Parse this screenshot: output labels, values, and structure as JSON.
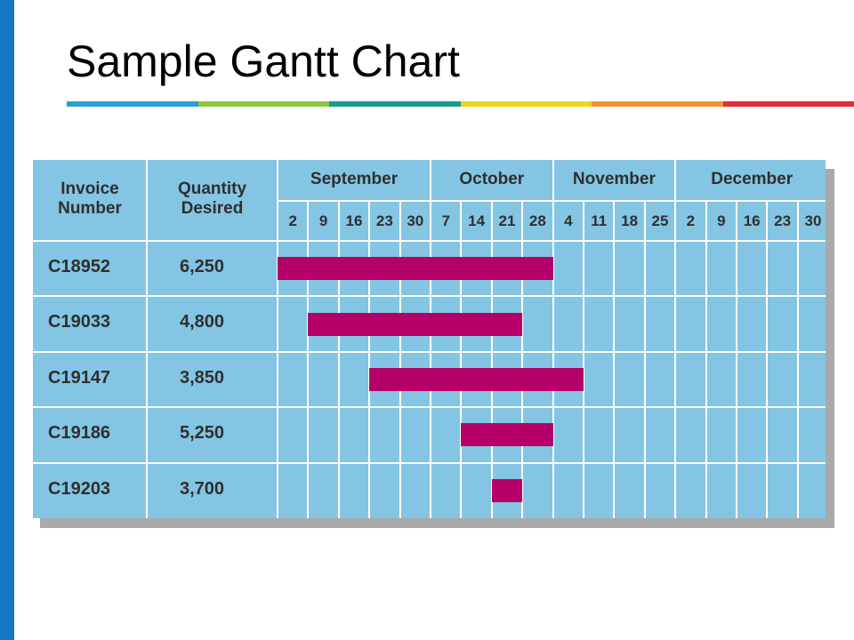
{
  "slide": {
    "title": "Sample Gantt Chart",
    "accent_colors": [
      "#2a9fd8",
      "#8cc63f",
      "#1a9a8c",
      "#f2d31b",
      "#f3922f",
      "#e5293a"
    ],
    "side_bar_color": "#1877c2"
  },
  "chart_data": {
    "type": "gantt",
    "columns": {
      "invoice": "Invoice\nNumber",
      "quantity": "Quantity\nDesired"
    },
    "months": [
      {
        "name": "September",
        "weeks": [
          "2",
          "9",
          "16",
          "23",
          "30"
        ]
      },
      {
        "name": "October",
        "weeks": [
          "7",
          "14",
          "21",
          "28"
        ]
      },
      {
        "name": "November",
        "weeks": [
          "4",
          "11",
          "18",
          "25"
        ]
      },
      {
        "name": "December",
        "weeks": [
          "2",
          "9",
          "16",
          "23",
          "30"
        ]
      }
    ],
    "rows": [
      {
        "invoice": "C18952",
        "quantity": "6,250",
        "start": "Sep 2",
        "end": "Oct 28"
      },
      {
        "invoice": "C19033",
        "quantity": "4,800",
        "start": "Sep 9",
        "end": "Oct 21"
      },
      {
        "invoice": "C19147",
        "quantity": "3,850",
        "start": "Sep 23",
        "end": "Nov 4"
      },
      {
        "invoice": "C19186",
        "quantity": "5,250",
        "start": "Oct 14",
        "end": "Oct 28"
      },
      {
        "invoice": "C19203",
        "quantity": "3,700",
        "start": "Oct 21",
        "end": "Oct 21"
      }
    ],
    "colors": {
      "background": "#84c5e3",
      "bar": "#b5006a",
      "grid": "#ffffff",
      "text": "#2f2f2f"
    }
  }
}
